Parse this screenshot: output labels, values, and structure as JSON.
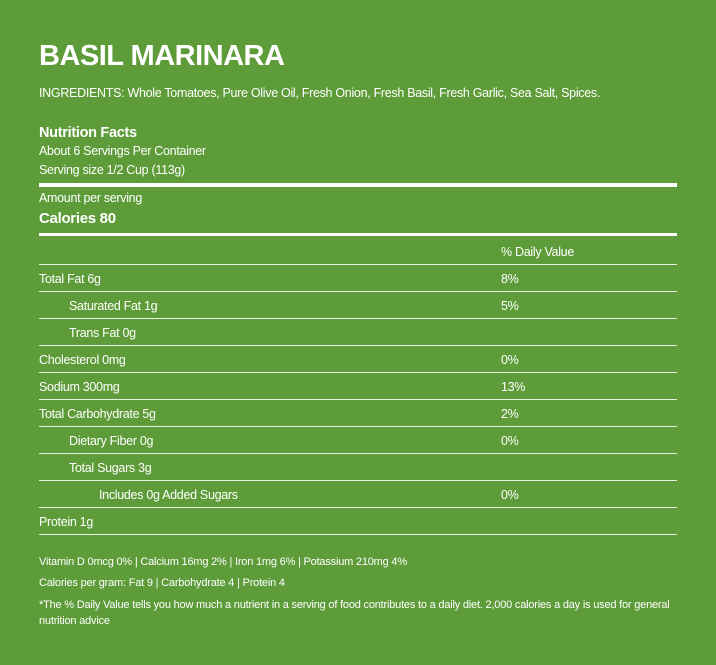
{
  "product": {
    "title": "BASIL MARINARA",
    "ingredients": "INGREDIENTS: Whole Tomatoes, Pure Olive Oil, Fresh Onion, Fresh Basil, Fresh Garlic, Sea Salt, Spices."
  },
  "facts": {
    "heading": "Nutrition Facts",
    "servings": "About 6 Servings Per Container",
    "serving_size": "Serving size 1/2 Cup (113g)",
    "amount_label": "Amount per serving",
    "calories": "Calories 80",
    "dv_header": "% Daily Value",
    "rows": [
      {
        "name": "Total Fat 6g",
        "dv": "8%",
        "indent": 0
      },
      {
        "name": "Saturated Fat 1g",
        "dv": "5%",
        "indent": 1
      },
      {
        "name": "Trans Fat 0g",
        "dv": "",
        "indent": 1
      },
      {
        "name": "Cholesterol 0mg",
        "dv": "0%",
        "indent": 0
      },
      {
        "name": "Sodium 300mg",
        "dv": "13%",
        "indent": 0
      },
      {
        "name": "Total Carbohydrate 5g",
        "dv": "2%",
        "indent": 0
      },
      {
        "name": "Dietary Fiber 0g",
        "dv": "0%",
        "indent": 1
      },
      {
        "name": "Total Sugars 3g",
        "dv": "",
        "indent": 1
      },
      {
        "name": "Includes 0g Added Sugars",
        "dv": "0%",
        "indent": 2
      },
      {
        "name": "Protein 1g",
        "dv": "",
        "indent": 0
      }
    ],
    "vitamins": "Vitamin D 0mcg 0% | Calcium 16mg 2% | Iron 1mg 6% | Potassium 210mg 4%",
    "cal_per_gram": "Calories per gram: Fat 9 | Carbohydrate 4 | Protein 4",
    "footnote": "*The % Daily Value tells you how much a nutrient in a serving of food contributes to a daily diet. 2,000 calories a day is used for general nutrition advice"
  }
}
